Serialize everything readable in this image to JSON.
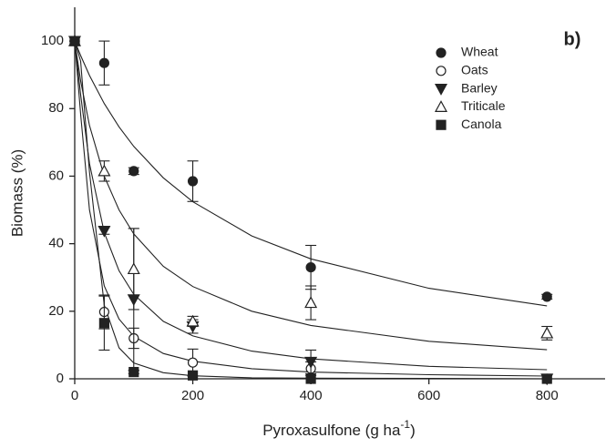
{
  "chart_data": {
    "type": "scatter",
    "panel_label": "b)",
    "xlabel": [
      "Pyroxasulfone (g ha",
      "-1",
      ")"
    ],
    "ylabel": "Biomass (%)",
    "xlim": [
      0,
      900
    ],
    "ylim": [
      0,
      110
    ],
    "xticks": [
      0,
      200,
      400,
      600,
      800
    ],
    "yticks": [
      0,
      20,
      40,
      60,
      80,
      100
    ],
    "legend": "top-right",
    "x": [
      0,
      50,
      100,
      200,
      400,
      800
    ],
    "fit_x": [
      0,
      10,
      25,
      50,
      75,
      100,
      150,
      200,
      300,
      400,
      600,
      800
    ],
    "series": [
      {
        "name": "Wheat",
        "color": "#222222",
        "marker": "circle",
        "filled": true,
        "values": [
          100,
          93.5,
          61.5,
          58.5,
          33,
          24.3
        ],
        "errors": [
          null,
          6.5,
          1,
          6,
          6.5,
          0.7
        ],
        "fit": [
          100,
          95.7,
          89.8,
          81.5,
          74.6,
          68.8,
          59.5,
          52.4,
          42.3,
          35.5,
          26.8,
          21.6
        ]
      },
      {
        "name": "Oats",
        "color": "#222222",
        "marker": "circle",
        "filled": false,
        "values": [
          100,
          19.8,
          12,
          4.8,
          3,
          0
        ],
        "errors": [
          null,
          5,
          3,
          4,
          2,
          null
        ],
        "fit": [
          100,
          78.3,
          50,
          27.5,
          17.7,
          12.6,
          7.5,
          5.2,
          3,
          2,
          1.2,
          0.8
        ]
      },
      {
        "name": "Barley",
        "color": "#222222",
        "marker": "triangle-down",
        "filled": true,
        "values": [
          100,
          43.8,
          23.5,
          15.5,
          5,
          0
        ],
        "errors": [
          null,
          1,
          21,
          2,
          3.5,
          null
        ],
        "fit": [
          100,
          84.1,
          63.7,
          43.3,
          32,
          25,
          17,
          12.7,
          8.2,
          5.9,
          3.7,
          2.7
        ]
      },
      {
        "name": "Triticale",
        "color": "#222222",
        "marker": "triangle-up",
        "filled": false,
        "values": [
          100,
          61.5,
          32.5,
          17,
          22.5,
          13.5
        ],
        "errors": [
          null,
          3,
          12,
          1.5,
          5,
          2
        ],
        "fit": [
          100,
          88.2,
          75,
          60,
          50,
          42.9,
          33.3,
          27.3,
          20,
          15.8,
          11.1,
          8.6
        ]
      },
      {
        "name": "Canola",
        "color": "#222222",
        "marker": "square",
        "filled": true,
        "values": [
          100,
          16.5,
          2,
          1,
          0,
          0
        ],
        "errors": [
          null,
          8,
          0.5,
          null,
          null,
          null
        ],
        "fit": [
          100,
          94,
          61.2,
          21.8,
          9.2,
          4.7,
          1.8,
          0.9,
          0.3,
          0.2,
          0.1,
          0
        ]
      }
    ]
  }
}
